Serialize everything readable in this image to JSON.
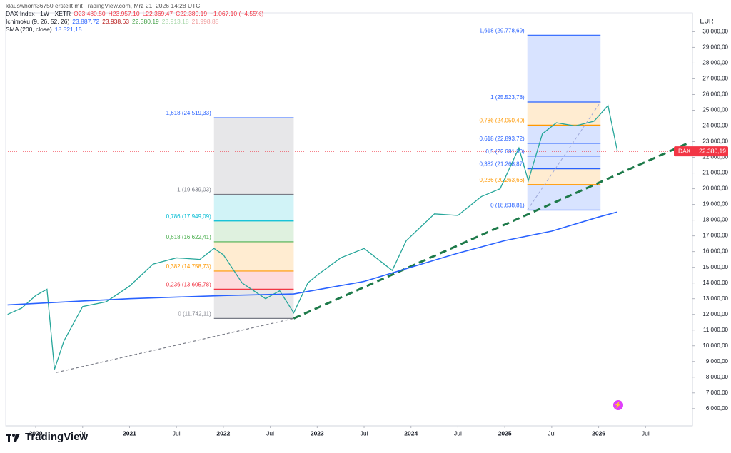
{
  "header": {
    "author": "klauswhorn36750 erstellt mit TradingView.com, Mrz 21, 2026 14:28 UTC",
    "symbol": "DAX Index · 1W · XETR",
    "ohlc": [
      "O23.480,50",
      "H23.957,10",
      "L22.369,47",
      "C22.380,19",
      "−1.067,10 (−4,55%)"
    ],
    "ichimoku": "Ichimoku (9, 26, 52, 26)",
    "ichimoku_values": [
      "23.887,72",
      "23.938,63",
      "22.380,19",
      "23.913,18",
      "21.998,85"
    ]
  },
  "chart_data": {
    "type": "line",
    "currency": "EUR",
    "xlim": [
      2019.68,
      2027.0
    ],
    "xticks": [
      2020,
      {
        "value": 2020.5,
        "label": "Jul"
      },
      2021,
      {
        "value": 2021.5,
        "label": "Jul"
      },
      2022,
      {
        "value": 2022.5,
        "label": "Jul"
      },
      2023,
      {
        "value": 2023.5,
        "label": "Jul"
      },
      2024,
      {
        "value": 2024.5,
        "label": "Jul"
      },
      2025,
      {
        "value": 2025.5,
        "label": "Jul"
      },
      2026,
      {
        "value": 2026.5,
        "label": "Jul"
      }
    ],
    "ylim": [
      4900,
      31200
    ],
    "yticks": [
      {
        "value": 6000,
        "label": "6.000,00"
      },
      {
        "value": 7000,
        "label": "7.000,00"
      },
      {
        "value": 8000,
        "label": "8.000,00"
      },
      {
        "value": 9000,
        "label": "9.000,00"
      },
      {
        "value": 10000,
        "label": "10.000,00"
      },
      {
        "value": 11000,
        "label": "11.000,00"
      },
      {
        "value": 12000,
        "label": "12.000,00"
      },
      {
        "value": 13000,
        "label": "13.000,00"
      },
      {
        "value": 14000,
        "label": "14.000,00"
      },
      {
        "value": 15000,
        "label": "15.000,00"
      },
      {
        "value": 16000,
        "label": "16.000,00"
      },
      {
        "value": 17000,
        "label": "17.000,00"
      },
      {
        "value": 18000,
        "label": "18.000,00"
      },
      {
        "value": 19000,
        "label": "19.000,00"
      },
      {
        "value": 20000,
        "label": "20.000,00"
      },
      {
        "value": 21000,
        "label": "21.000,00"
      },
      {
        "value": 22000,
        "label": "22.000,00"
      },
      {
        "value": 23000,
        "label": "23.000,00"
      },
      {
        "value": 24000,
        "label": "24.000,00"
      },
      {
        "value": 25000,
        "label": "25.000,00"
      },
      {
        "value": 26000,
        "label": "26.000,00"
      },
      {
        "value": 27000,
        "label": "27.000,00"
      },
      {
        "value": 28000,
        "label": "28.000,00"
      },
      {
        "value": 29000,
        "label": "29.000,00"
      },
      {
        "value": 30000,
        "label": "30.000,00"
      }
    ],
    "series": [
      {
        "name": "DAX",
        "color": "#26a69a",
        "x": [
          2019.7,
          2019.85,
          2020.0,
          2020.12,
          2020.2,
          2020.3,
          2020.5,
          2020.75,
          2021.0,
          2021.25,
          2021.5,
          2021.75,
          2021.9,
          2022.0,
          2022.2,
          2022.45,
          2022.6,
          2022.75,
          2022.9,
          2023.0,
          2023.25,
          2023.5,
          2023.8,
          2023.95,
          2024.25,
          2024.5,
          2024.75,
          2024.95,
          2025.15,
          2025.25,
          2025.4,
          2025.55,
          2025.75,
          2025.95,
          2026.1,
          2026.2
        ],
        "values": [
          12000,
          12400,
          13200,
          13600,
          8500,
          10300,
          12500,
          12800,
          13800,
          15200,
          15600,
          15500,
          16200,
          15800,
          14000,
          13000,
          13500,
          12100,
          14000,
          14500,
          15600,
          16200,
          14800,
          16700,
          18400,
          18300,
          19500,
          20000,
          22600,
          20500,
          23500,
          24200,
          24000,
          24300,
          25300,
          22380.19
        ],
        "last_value_label": "22.380,19"
      },
      {
        "name": "SMA (200, close)",
        "color": "#2962ff",
        "value_label": "18.521,15",
        "x": [
          2019.7,
          2020.5,
          2021.0,
          2022.0,
          2022.75,
          2023.5,
          2024.0,
          2024.5,
          2025.0,
          2025.5,
          2026.0,
          2026.2
        ],
        "values": [
          12600,
          12850,
          13000,
          13200,
          13300,
          14100,
          15000,
          15900,
          16700,
          17300,
          18200,
          18521.15
        ]
      }
    ],
    "fibs": [
      {
        "x": [
          2021.9,
          2022.75
        ],
        "levels": [
          {
            "label": "0 (11.742,11)",
            "value": 11742.11,
            "color": "#787b86"
          },
          {
            "label": "0,236 (13.605,78)",
            "value": 13605.78,
            "color": "#f23645"
          },
          {
            "label": "0,382 (14.758,73)",
            "value": 14758.73,
            "color": "#ff9800"
          },
          {
            "label": "0,618 (16.622,41)",
            "value": 16622.41,
            "color": "#4caf50"
          },
          {
            "label": "0,786 (17.949,09)",
            "value": 17949.09,
            "color": "#00bcd4"
          },
          {
            "label": "1 (19.639,03)",
            "value": 19639.03,
            "color": "#787b86"
          },
          {
            "label": "1,618 (24.519,33)",
            "value": 24519.33,
            "color": "#2962ff"
          }
        ]
      },
      {
        "x": [
          2025.24,
          2026.02
        ],
        "levels": [
          {
            "label": "0 (18.638,81)",
            "value": 18638.81,
            "color": "#2962ff"
          },
          {
            "label": "0,236 (20.263,66)",
            "value": 20263.66,
            "color": "#ff9800"
          },
          {
            "label": "0,382 (21.268,87)",
            "value": 21268.87,
            "color": "#2962ff"
          },
          {
            "label": "0,5 (22.081,30)",
            "value": 22081.3,
            "color": "#2962ff"
          },
          {
            "label": "0,618 (22.893,72)",
            "value": 22893.72,
            "color": "#2962ff"
          },
          {
            "label": "0,786 (24.050,40)",
            "value": 24050.4,
            "color": "#ff9800"
          },
          {
            "label": "1 (25.523,78)",
            "value": 25523.78,
            "color": "#2962ff"
          },
          {
            "label": "1,618 (29.778,69)",
            "value": 29778.69,
            "color": "#2962ff"
          }
        ]
      }
    ],
    "trend_lines": [
      {
        "x": [
          2020.22,
          2022.75
        ],
        "values": [
          8300,
          11742.11
        ],
        "color": "#787b86",
        "width": 1.2
      },
      {
        "x": [
          2022.75,
          2026.95
        ],
        "values": [
          11742.11,
          22900
        ],
        "color": "#1e7a4a",
        "width": 3
      },
      {
        "x": [
          2025.24,
          2026.02
        ],
        "values": [
          18638.81,
          25523.78
        ],
        "color": "#9fa8da",
        "width": 1
      }
    ]
  },
  "footer": {
    "brand": "TradingView"
  }
}
